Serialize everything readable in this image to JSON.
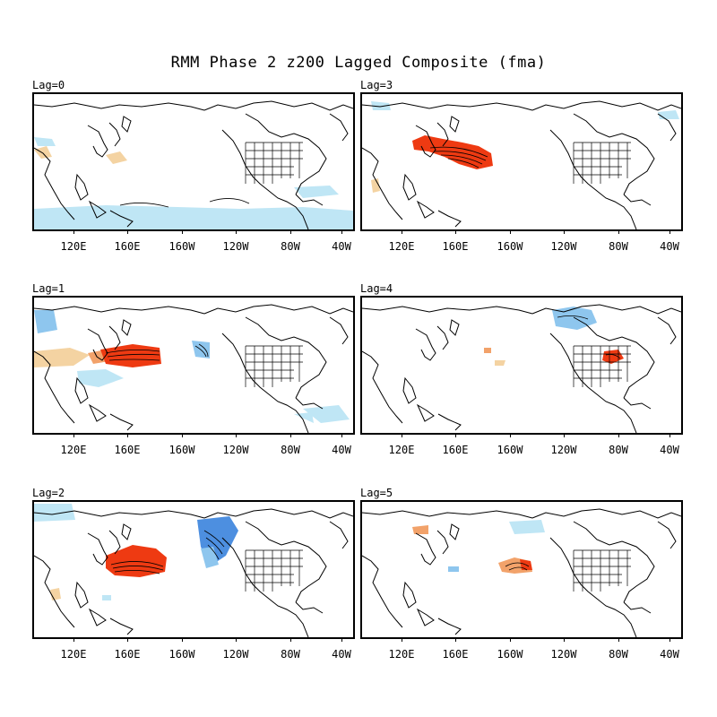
{
  "title": "RMM Phase 2 z200 Lagged Composite (fma)",
  "x_tick_labels": [
    "120E",
    "160E",
    "160W",
    "120W",
    "80W",
    "40W"
  ],
  "colors": {
    "positive_light": "#f4d3a2",
    "positive_mid": "#f2a26a",
    "positive_strong": "#ee3a12",
    "negative_light": "#bfe6f5",
    "negative_mid": "#8ec6ee",
    "negative_strong": "#4d8fe0"
  },
  "panels": [
    {
      "id": "lag0",
      "label": "Lag=0"
    },
    {
      "id": "lag3",
      "label": "Lag=3"
    },
    {
      "id": "lag1",
      "label": "Lag=1"
    },
    {
      "id": "lag4",
      "label": "Lag=4"
    },
    {
      "id": "lag2",
      "label": "Lag=2"
    },
    {
      "id": "lag5",
      "label": "Lag=5"
    }
  ]
}
